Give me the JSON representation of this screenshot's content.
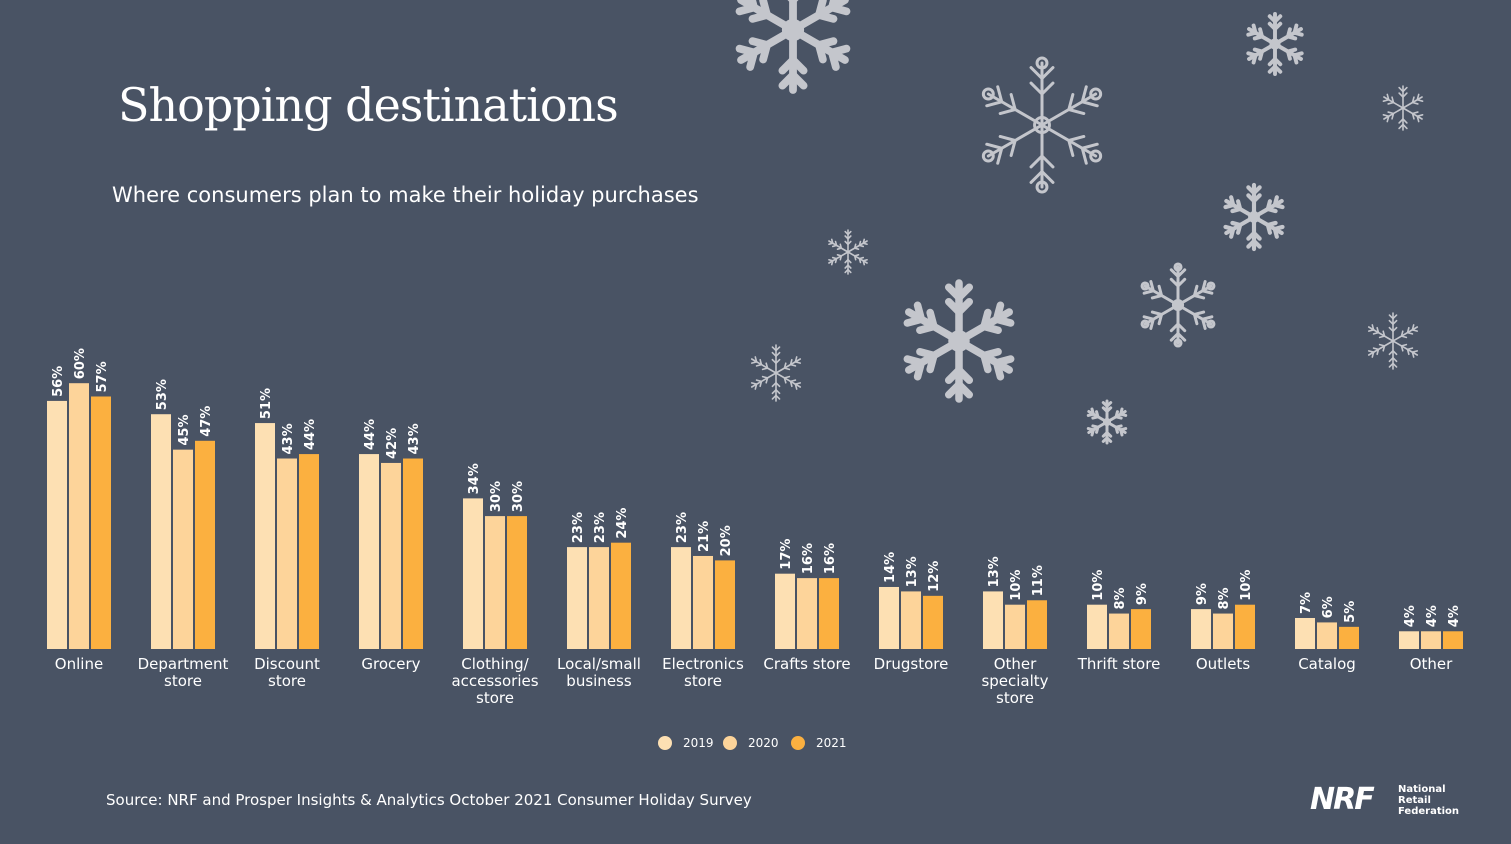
{
  "header": {
    "title": "Shopping destinations",
    "subtitle": "Where consumers plan to make their holiday purchases"
  },
  "footer": {
    "source": "Source: NRF and Prosper Insights & Analytics October 2021 Consumer Holiday Survey",
    "logo_mark": "NRF",
    "logo_words": [
      "National",
      "Retail",
      "Federation"
    ]
  },
  "colors": {
    "background": "#495364",
    "series_2019": "#fde0b3",
    "series_2020": "#fdd49a",
    "series_2021": "#fbb040",
    "snowflake": "#c4c6cc",
    "text": "#ffffff"
  },
  "icons": {
    "decoration": "snowflake-icon"
  },
  "chart_data": {
    "type": "bar",
    "title": "Shopping destinations",
    "subtitle": "Where consumers plan to make their holiday purchases",
    "categories": [
      [
        "Online"
      ],
      [
        "Department",
        "store"
      ],
      [
        "Discount",
        "store"
      ],
      [
        "Grocery"
      ],
      [
        "Clothing/",
        "accessories",
        "store"
      ],
      [
        "Local/small",
        "business"
      ],
      [
        "Electronics",
        "store"
      ],
      [
        "Crafts store"
      ],
      [
        "Drugstore"
      ],
      [
        "Other",
        "specialty",
        "store"
      ],
      [
        "Thrift store"
      ],
      [
        "Outlets"
      ],
      [
        "Catalog"
      ],
      [
        "Other"
      ]
    ],
    "series": [
      {
        "name": "2019",
        "color": "#fde0b3",
        "values": [
          56,
          53,
          51,
          44,
          34,
          23,
          23,
          17,
          14,
          13,
          10,
          9,
          7,
          4
        ]
      },
      {
        "name": "2020",
        "color": "#fdd49a",
        "values": [
          60,
          45,
          43,
          42,
          30,
          23,
          21,
          16,
          13,
          10,
          8,
          8,
          6,
          4
        ]
      },
      {
        "name": "2021",
        "color": "#fbb040",
        "values": [
          57,
          47,
          44,
          43,
          30,
          24,
          20,
          16,
          12,
          11,
          9,
          10,
          5,
          4
        ]
      }
    ],
    "value_suffix": "%",
    "xlabel": "",
    "ylabel": "",
    "ylim": [
      0,
      60
    ],
    "grid": false,
    "legend": "bottom-center",
    "data_labels": "rotated-above-bars"
  }
}
